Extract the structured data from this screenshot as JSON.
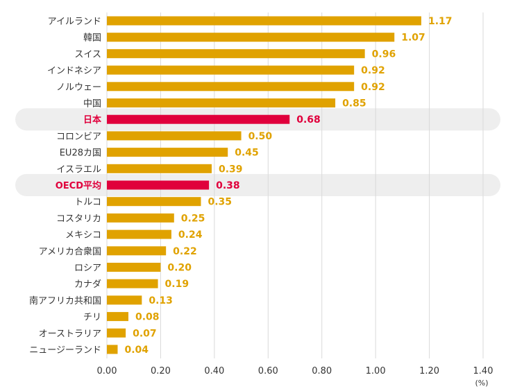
{
  "chart_data": {
    "type": "bar",
    "orientation": "horizontal",
    "unit": "(%)",
    "xlim": [
      0,
      1.4
    ],
    "x_ticks": [
      "0.00",
      "0.20",
      "0.40",
      "0.60",
      "0.80",
      "1.00",
      "1.20",
      "1.40"
    ],
    "grid": "vertical",
    "categories": [
      "アイルランド",
      "韓国",
      "スイス",
      "インドネシア",
      "ノルウェー",
      "中国",
      "日本",
      "コロンビア",
      "EU28カ国",
      "イスラエル",
      "OECD平均",
      "トルコ",
      "コスタリカ",
      "メキシコ",
      "アメリカ合衆国",
      "ロシア",
      "カナダ",
      "南アフリカ共和国",
      "チリ",
      "オーストラリア",
      "ニュージーランド"
    ],
    "values": [
      1.17,
      1.07,
      0.96,
      0.92,
      0.92,
      0.85,
      0.68,
      0.5,
      0.45,
      0.39,
      0.38,
      0.35,
      0.25,
      0.24,
      0.22,
      0.2,
      0.19,
      0.13,
      0.08,
      0.07,
      0.04
    ],
    "value_labels": [
      "1.17",
      "1.07",
      "0.96",
      "0.92",
      "0.92",
      "0.85",
      "0.68",
      "0.50",
      "0.45",
      "0.39",
      "0.38",
      "0.35",
      "0.25",
      "0.24",
      "0.22",
      "0.20",
      "0.19",
      "0.13",
      "0.08",
      "0.07",
      "0.04"
    ],
    "highlighted": [
      "日本",
      "OECD平均"
    ],
    "colors": {
      "bar": "#e0a200",
      "highlight_bar": "#e0003c",
      "highlight_band": "#eeeeee",
      "grid": "#d9d9d9"
    }
  }
}
